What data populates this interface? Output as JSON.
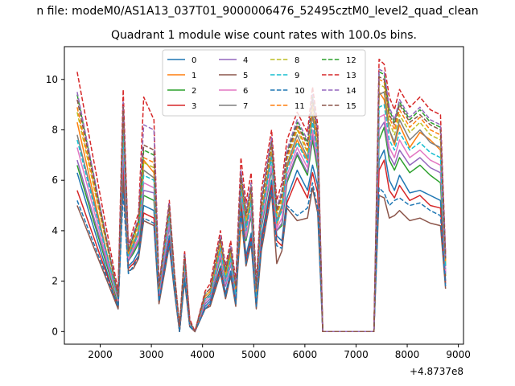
{
  "figure": {
    "suptitle": "n file: modeM0/AS1A13_037T01_9000006476_52495cztM0_level2_quad_clean",
    "title": "Quadrant 1 module wise count rates with 100.0s bins.",
    "offset_label": "+4.8737e8"
  },
  "chart_data": {
    "type": "line",
    "title": "Quadrant 1 module wise count rates with 100.0s bins.",
    "xlabel": "",
    "ylabel": "",
    "x_offset": 487370000,
    "xlim": [
      1300,
      9100
    ],
    "ylim": [
      -0.5,
      11.3
    ],
    "x_ticks": [
      2000,
      3000,
      4000,
      5000,
      6000,
      7000,
      8000,
      9000
    ],
    "x_tick_labels": [
      "2000",
      "3000",
      "4000",
      "5000",
      "6000",
      "7000",
      "8000",
      "9000"
    ],
    "y_ticks": [
      0,
      2,
      4,
      6,
      8,
      10
    ],
    "y_tick_labels": [
      "0",
      "2",
      "4",
      "6",
      "8",
      "10"
    ],
    "legend": {
      "placement": "top-center",
      "columns": 4
    },
    "x": [
      1550,
      2350,
      2450,
      2550,
      2650,
      2750,
      2850,
      3050,
      3150,
      3350,
      3450,
      3550,
      3650,
      3750,
      3850,
      4050,
      4150,
      4350,
      4450,
      4550,
      4650,
      4750,
      4850,
      4950,
      5050,
      5150,
      5350,
      5450,
      5550,
      5650,
      5850,
      6050,
      6150,
      6250,
      6350,
      7350,
      7450,
      7550,
      7650,
      7750,
      7850,
      8050,
      8250,
      8450,
      8650,
      8750
    ],
    "series": [
      {
        "name": "0",
        "color": "#1f77b4",
        "dashed": false,
        "values": [
          6.3,
          0.9,
          6.6,
          2.6,
          2.8,
          3.2,
          5.0,
          4.8,
          1.2,
          3.8,
          1.8,
          0.0,
          2.3,
          0.3,
          0.0,
          1.0,
          1.2,
          2.6,
          1.5,
          2.4,
          1.2,
          5.2,
          3.0,
          3.9,
          1.0,
          3.7,
          6.0,
          3.8,
          3.6,
          5.3,
          6.4,
          5.6,
          6.6,
          5.8,
          0.0,
          0.0,
          6.8,
          7.2,
          6.0,
          5.6,
          6.2,
          5.5,
          5.6,
          5.4,
          5.2,
          2.0
        ]
      },
      {
        "name": "1",
        "color": "#ff7f0e",
        "dashed": false,
        "values": [
          8.3,
          1.1,
          8.0,
          2.9,
          3.4,
          3.9,
          6.8,
          6.3,
          1.6,
          4.6,
          2.1,
          0.2,
          2.8,
          0.4,
          0.0,
          1.3,
          1.5,
          3.3,
          2.2,
          3.0,
          1.6,
          4.0,
          4.1,
          5.2,
          1.5,
          4.6,
          7.0,
          4.2,
          4.9,
          6.5,
          7.6,
          6.8,
          8.6,
          7.1,
          0.0,
          0.0,
          9.5,
          9.2,
          8.0,
          7.4,
          8.2,
          7.3,
          7.9,
          7.6,
          7.2,
          2.6
        ]
      },
      {
        "name": "2",
        "color": "#2ca02c",
        "dashed": false,
        "values": [
          6.6,
          1.1,
          7.4,
          2.8,
          3.1,
          3.5,
          5.4,
          5.2,
          1.4,
          4.2,
          1.9,
          0.1,
          2.5,
          0.3,
          0.0,
          1.1,
          1.3,
          2.9,
          1.8,
          2.7,
          1.4,
          5.3,
          3.6,
          4.6,
          1.3,
          4.1,
          6.4,
          4.0,
          4.2,
          5.9,
          7.0,
          6.2,
          7.6,
          6.4,
          0.0,
          0.0,
          7.6,
          8.1,
          6.8,
          6.4,
          6.9,
          6.3,
          6.6,
          6.2,
          5.9,
          2.2
        ]
      },
      {
        "name": "3",
        "color": "#d62728",
        "dashed": false,
        "values": [
          5.6,
          1.0,
          6.4,
          2.5,
          2.7,
          3.0,
          4.7,
          4.5,
          1.2,
          3.6,
          1.7,
          0.0,
          2.2,
          0.2,
          0.0,
          0.9,
          1.1,
          2.5,
          1.4,
          2.3,
          1.1,
          5.0,
          2.8,
          3.7,
          1.0,
          3.5,
          5.8,
          3.6,
          3.4,
          5.1,
          6.1,
          5.3,
          6.3,
          5.5,
          0.0,
          0.0,
          6.4,
          6.8,
          5.6,
          5.3,
          5.8,
          5.2,
          5.4,
          5.0,
          4.9,
          1.9
        ]
      },
      {
        "name": "4",
        "color": "#9467bd",
        "dashed": false,
        "values": [
          6.8,
          1.2,
          7.2,
          2.8,
          3.2,
          3.6,
          5.6,
          5.5,
          1.4,
          4.2,
          2.0,
          0.1,
          2.5,
          0.3,
          0.0,
          1.1,
          1.3,
          3.0,
          1.8,
          2.7,
          1.4,
          5.5,
          3.7,
          4.7,
          1.3,
          4.2,
          6.5,
          4.0,
          4.3,
          6.0,
          7.1,
          6.3,
          7.8,
          6.6,
          0.0,
          0.0,
          8.0,
          8.3,
          7.0,
          6.6,
          7.2,
          6.6,
          6.9,
          6.5,
          6.3,
          2.3
        ]
      },
      {
        "name": "5",
        "color": "#8c564b",
        "dashed": false,
        "values": [
          5.0,
          0.9,
          6.0,
          2.4,
          2.5,
          2.9,
          4.4,
          4.2,
          1.1,
          3.4,
          1.6,
          0.0,
          2.0,
          0.2,
          0.0,
          0.9,
          1.0,
          2.3,
          1.3,
          2.2,
          1.0,
          4.7,
          2.6,
          3.5,
          0.9,
          3.2,
          5.5,
          2.7,
          3.2,
          4.9,
          4.4,
          4.5,
          5.7,
          4.7,
          0.0,
          0.0,
          5.4,
          5.3,
          4.5,
          4.6,
          4.8,
          4.4,
          4.5,
          4.3,
          4.2,
          1.7
        ]
      },
      {
        "name": "6",
        "color": "#e377c2",
        "dashed": false,
        "values": [
          7.3,
          1.2,
          7.6,
          2.9,
          3.3,
          3.7,
          5.9,
          5.7,
          1.5,
          4.4,
          2.0,
          0.1,
          2.6,
          0.3,
          0.0,
          1.2,
          1.4,
          3.1,
          1.9,
          2.8,
          1.5,
          5.6,
          3.8,
          4.8,
          1.4,
          4.3,
          6.6,
          4.1,
          4.5,
          6.2,
          7.3,
          6.5,
          8.0,
          6.8,
          0.0,
          0.0,
          8.5,
          8.6,
          7.3,
          6.9,
          7.6,
          6.9,
          7.2,
          6.8,
          6.6,
          2.4
        ]
      },
      {
        "name": "7",
        "color": "#7f7f7f",
        "dashed": false,
        "values": [
          7.8,
          1.3,
          8.2,
          3.0,
          3.5,
          4.0,
          6.4,
          6.1,
          1.6,
          4.7,
          2.1,
          0.2,
          2.8,
          0.4,
          0.0,
          1.3,
          1.5,
          3.4,
          2.1,
          3.0,
          1.6,
          5.8,
          4.2,
          5.3,
          1.5,
          4.7,
          7.1,
          4.4,
          5.0,
          6.6,
          7.8,
          6.9,
          8.6,
          7.2,
          0.0,
          0.0,
          9.4,
          9.5,
          8.0,
          7.5,
          8.4,
          7.6,
          8.0,
          7.5,
          7.3,
          2.6
        ]
      },
      {
        "name": "8",
        "color": "#bcbd22",
        "dashed": true,
        "values": [
          8.7,
          1.4,
          8.5,
          3.1,
          3.6,
          4.2,
          6.7,
          6.5,
          1.7,
          4.8,
          2.2,
          0.2,
          2.9,
          0.4,
          0.0,
          1.4,
          1.6,
          3.5,
          2.2,
          3.1,
          1.7,
          6.0,
          4.4,
          5.5,
          1.6,
          4.9,
          7.3,
          4.6,
          5.2,
          6.8,
          8.0,
          7.1,
          8.9,
          7.4,
          0.0,
          0.0,
          9.8,
          9.7,
          8.3,
          7.8,
          8.6,
          7.9,
          8.3,
          7.8,
          7.6,
          2.7
        ]
      },
      {
        "name": "9",
        "color": "#17becf",
        "dashed": true,
        "values": [
          7.6,
          1.3,
          7.9,
          3.0,
          3.4,
          3.9,
          6.2,
          6.0,
          1.6,
          4.6,
          2.1,
          0.1,
          2.7,
          0.3,
          0.0,
          1.3,
          1.4,
          3.3,
          2.0,
          2.9,
          1.5,
          5.7,
          4.0,
          5.1,
          1.4,
          4.5,
          6.9,
          4.3,
          4.8,
          6.4,
          7.5,
          6.7,
          8.3,
          7.0,
          0.0,
          0.0,
          8.9,
          9.0,
          7.6,
          7.2,
          7.9,
          7.2,
          7.5,
          7.1,
          6.9,
          2.5
        ]
      },
      {
        "name": "10",
        "color": "#1f77b4",
        "dashed": true,
        "values": [
          5.2,
          1.0,
          5.5,
          2.3,
          2.6,
          3.0,
          4.5,
          4.3,
          1.2,
          3.5,
          1.7,
          0.0,
          2.1,
          0.2,
          0.0,
          0.9,
          1.1,
          2.4,
          1.4,
          2.3,
          1.1,
          4.8,
          2.7,
          3.6,
          1.0,
          3.4,
          5.6,
          3.4,
          3.3,
          5.0,
          4.6,
          4.9,
          5.9,
          4.9,
          0.0,
          0.0,
          5.7,
          5.5,
          5.0,
          5.2,
          5.3,
          5.0,
          5.1,
          4.8,
          4.6,
          1.8
        ]
      },
      {
        "name": "11",
        "color": "#ff7f0e",
        "dashed": true,
        "values": [
          8.9,
          1.4,
          8.7,
          3.1,
          3.7,
          4.3,
          6.9,
          6.7,
          1.7,
          4.9,
          2.3,
          0.2,
          3.0,
          0.4,
          0.0,
          1.4,
          1.6,
          3.6,
          2.3,
          3.2,
          1.7,
          6.1,
          4.5,
          5.6,
          1.6,
          5.0,
          7.4,
          4.7,
          5.3,
          6.9,
          8.1,
          7.2,
          9.0,
          7.5,
          0.0,
          0.0,
          10.0,
          9.9,
          8.5,
          8.0,
          8.8,
          8.1,
          8.5,
          8.0,
          7.8,
          2.8
        ]
      },
      {
        "name": "12",
        "color": "#2ca02c",
        "dashed": true,
        "values": [
          9.4,
          1.4,
          9.0,
          3.2,
          3.8,
          4.4,
          7.2,
          7.0,
          1.8,
          5.0,
          2.3,
          0.2,
          3.1,
          0.4,
          0.0,
          1.5,
          1.7,
          3.8,
          2.4,
          3.3,
          1.8,
          6.3,
          4.7,
          5.8,
          1.7,
          5.2,
          7.6,
          4.8,
          5.5,
          7.1,
          8.3,
          7.5,
          9.3,
          7.8,
          0.0,
          0.0,
          10.3,
          10.2,
          8.8,
          8.3,
          9.1,
          8.4,
          8.8,
          8.3,
          8.1,
          2.9
        ]
      },
      {
        "name": "13",
        "color": "#d62728",
        "dashed": true,
        "values": [
          10.3,
          1.6,
          9.6,
          3.4,
          4.1,
          4.7,
          9.3,
          8.4,
          1.9,
          5.2,
          2.4,
          0.2,
          3.2,
          0.5,
          0.0,
          1.6,
          1.9,
          4.0,
          2.6,
          3.6,
          2.0,
          6.9,
          5.1,
          6.3,
          1.9,
          5.6,
          8.0,
          5.2,
          5.9,
          7.6,
          8.7,
          7.9,
          9.7,
          8.2,
          0.0,
          0.0,
          10.8,
          10.6,
          9.3,
          8.8,
          9.6,
          8.9,
          9.3,
          8.8,
          8.6,
          3.1
        ]
      },
      {
        "name": "14",
        "color": "#9467bd",
        "dashed": true,
        "values": [
          9.5,
          1.4,
          9.1,
          3.3,
          3.9,
          4.5,
          8.2,
          8.0,
          1.8,
          5.1,
          2.3,
          0.2,
          3.1,
          0.4,
          0.0,
          1.5,
          1.7,
          3.8,
          2.5,
          3.4,
          1.8,
          6.4,
          4.8,
          5.9,
          1.7,
          5.3,
          7.7,
          4.9,
          5.6,
          7.2,
          8.4,
          7.6,
          9.4,
          7.9,
          0.0,
          0.0,
          10.4,
          10.3,
          8.9,
          8.4,
          9.2,
          8.5,
          8.9,
          8.4,
          8.2,
          3.0
        ]
      },
      {
        "name": "15",
        "color": "#8c564b",
        "dashed": true,
        "values": [
          9.2,
          1.4,
          8.9,
          3.2,
          3.8,
          4.4,
          7.4,
          7.2,
          1.8,
          5.0,
          2.3,
          0.2,
          3.0,
          0.4,
          0.0,
          1.5,
          1.7,
          3.7,
          2.4,
          3.3,
          1.8,
          6.2,
          4.6,
          5.7,
          1.7,
          5.1,
          7.5,
          4.8,
          5.4,
          7.0,
          8.2,
          7.4,
          9.2,
          7.7,
          0.0,
          0.0,
          10.1,
          10.0,
          8.6,
          8.2,
          9.0,
          8.3,
          8.6,
          8.2,
          8.0,
          2.9
        ]
      }
    ]
  }
}
